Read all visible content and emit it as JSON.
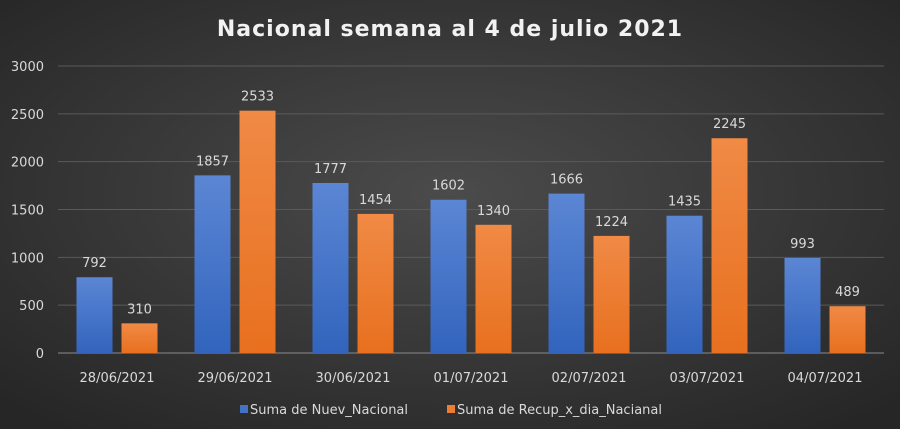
{
  "chart_data": {
    "type": "bar",
    "title": "Nacional semana al 4 de julio 2021",
    "xlabel": "",
    "ylabel": "",
    "ylim": [
      0,
      3000
    ],
    "yticks": [
      0,
      500,
      1000,
      1500,
      2000,
      2500,
      3000
    ],
    "grid": true,
    "legend_position": "bottom",
    "categories": [
      "28/06/2021",
      "29/06/2021",
      "30/06/2021",
      "01/07/2021",
      "02/07/2021",
      "03/07/2021",
      "04/07/2021"
    ],
    "series": [
      {
        "name": "Suma de Nuev_Nacional",
        "color": "#4472C4",
        "values": [
          792,
          1857,
          1777,
          1602,
          1666,
          1435,
          993
        ]
      },
      {
        "name": "Suma de Recup_x_dia_Nacianal",
        "color": "#ED7D31",
        "values": [
          310,
          2533,
          1454,
          1340,
          1224,
          2245,
          489
        ]
      }
    ]
  }
}
